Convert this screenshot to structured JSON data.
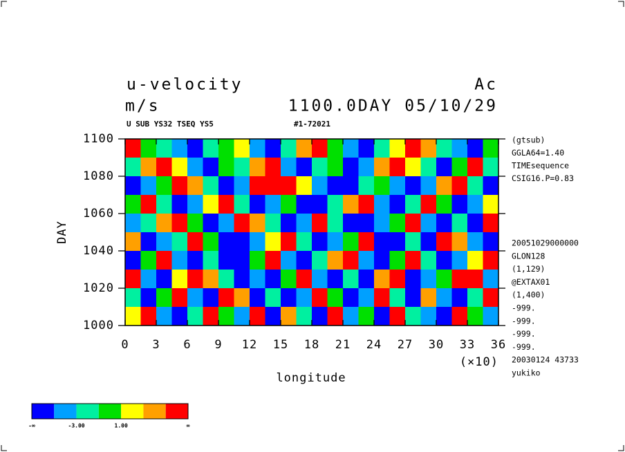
{
  "chart_data": {
    "type": "heatmap",
    "title": "u-velocity",
    "title_right": "Ac",
    "units": "m/s",
    "time_label": "1100.0DAY 05/10/29",
    "info_left": "U SUB YS32 TSEQ YS5",
    "info_right": "#1-72021",
    "x_label": "longitude",
    "x_scale_label": "(×10)",
    "y_label": "DAY",
    "xlim": [
      0,
      36
    ],
    "xticks": [
      0,
      3,
      6,
      9,
      12,
      15,
      18,
      21,
      24,
      27,
      30,
      33,
      36
    ],
    "ylim": [
      1000,
      1100
    ],
    "yticks": [
      1000,
      1020,
      1040,
      1060,
      1080,
      1100
    ],
    "notes_top": [
      "(gtsub)",
      "GGLA64=1.40",
      "TIMEsequence",
      "CSIG16.P=0.83"
    ],
    "notes_bottom": [
      "20051029000000",
      "GLON128",
      "(1,129)",
      "@EXTAX01",
      "(1,400)",
      "-999.",
      "-999.",
      "-999.",
      "-999.",
      "20030124  43733",
      "yukiko"
    ],
    "level_colors": [
      "#0000ff",
      "#00a0ff",
      "#00f0a0",
      "#00e000",
      "#ffff00",
      "#ffa000",
      "#ff0000"
    ],
    "level_labels": [
      "-∞",
      "-3.00",
      "1.00",
      "∞"
    ],
    "field": [
      [
        6,
        3,
        2,
        1,
        0,
        2,
        3,
        4,
        1,
        0,
        2,
        5,
        6,
        3,
        1,
        0,
        2,
        4,
        6,
        5,
        2,
        1,
        0,
        3
      ],
      [
        2,
        5,
        6,
        4,
        1,
        0,
        3,
        2,
        5,
        6,
        1,
        0,
        2,
        3,
        0,
        1,
        5,
        6,
        4,
        2,
        0,
        3,
        6,
        2
      ],
      [
        0,
        1,
        3,
        6,
        5,
        2,
        0,
        1,
        6,
        6,
        6,
        4,
        1,
        0,
        0,
        2,
        3,
        1,
        0,
        1,
        5,
        6,
        2,
        0
      ],
      [
        3,
        6,
        2,
        0,
        1,
        4,
        6,
        2,
        0,
        1,
        3,
        0,
        0,
        2,
        5,
        6,
        1,
        0,
        2,
        6,
        3,
        0,
        1,
        4
      ],
      [
        1,
        2,
        5,
        6,
        3,
        0,
        1,
        6,
        5,
        2,
        0,
        1,
        6,
        2,
        0,
        0,
        1,
        3,
        6,
        1,
        0,
        2,
        0,
        6
      ],
      [
        5,
        0,
        1,
        2,
        6,
        3,
        0,
        0,
        1,
        4,
        6,
        2,
        0,
        1,
        3,
        6,
        0,
        0,
        2,
        0,
        6,
        5,
        1,
        0
      ],
      [
        0,
        3,
        6,
        1,
        0,
        2,
        0,
        0,
        3,
        6,
        1,
        0,
        2,
        5,
        6,
        1,
        0,
        3,
        6,
        2,
        0,
        1,
        4,
        6
      ],
      [
        6,
        1,
        0,
        4,
        6,
        5,
        2,
        0,
        1,
        0,
        3,
        6,
        1,
        0,
        2,
        0,
        5,
        6,
        0,
        1,
        3,
        6,
        6,
        1
      ],
      [
        2,
        0,
        3,
        6,
        1,
        0,
        6,
        5,
        0,
        2,
        0,
        1,
        6,
        3,
        0,
        1,
        6,
        2,
        0,
        5,
        1,
        0,
        2,
        6
      ],
      [
        4,
        6,
        1,
        0,
        2,
        6,
        3,
        1,
        6,
        0,
        5,
        2,
        0,
        6,
        1,
        3,
        0,
        6,
        2,
        1,
        0,
        6,
        3,
        1
      ]
    ]
  }
}
